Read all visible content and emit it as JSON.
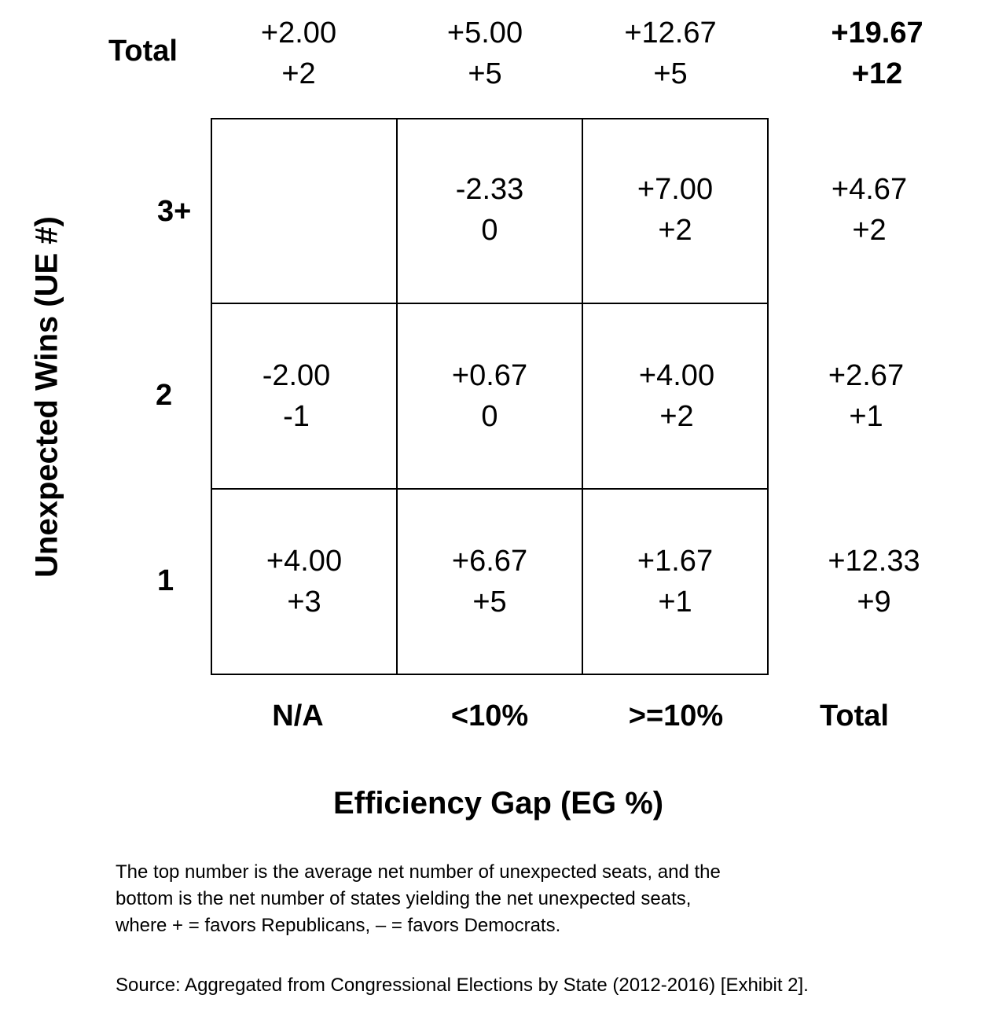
{
  "chart_data": {
    "type": "table",
    "title": "",
    "xlabel": "Efficiency Gap (EG %)",
    "ylabel": "Unexpected Wins (UE #)",
    "columns": [
      "N/A",
      "<10%",
      ">=10%"
    ],
    "rows": [
      "3+",
      "2",
      "1"
    ],
    "total_label": "Total",
    "cells": [
      [
        {
          "avg": "",
          "states": ""
        },
        {
          "avg": "-2.33",
          "states": "0"
        },
        {
          "avg": "+7.00",
          "states": "+2"
        }
      ],
      [
        {
          "avg": "-2.00",
          "states": "-1"
        },
        {
          "avg": "+0.67",
          "states": "0"
        },
        {
          "avg": "+4.00",
          "states": "+2"
        }
      ],
      [
        {
          "avg": "+4.00",
          "states": "+3"
        },
        {
          "avg": "+6.67",
          "states": "+5"
        },
        {
          "avg": "+1.67",
          "states": "+1"
        }
      ]
    ],
    "row_totals": [
      {
        "avg": "+4.67",
        "states": "+2"
      },
      {
        "avg": "+2.67",
        "states": "+1"
      },
      {
        "avg": "+12.33",
        "states": "+9"
      }
    ],
    "col_totals": [
      {
        "avg": "+2.00",
        "states": "+2"
      },
      {
        "avg": "+5.00",
        "states": "+5"
      },
      {
        "avg": "+12.67",
        "states": "+5"
      }
    ],
    "grand_total": {
      "avg": "+19.67",
      "states": "+12"
    }
  },
  "note": {
    "line1": "The top number is the average net number of unexpected seats, and the",
    "line2": "bottom is the net number of states yielding the net unexpected seats,",
    "line3": "where + = favors Republicans, – = favors Democrats."
  },
  "source": "Source: Aggregated from Congressional Elections by State (2012-2016) [Exhibit 2]."
}
